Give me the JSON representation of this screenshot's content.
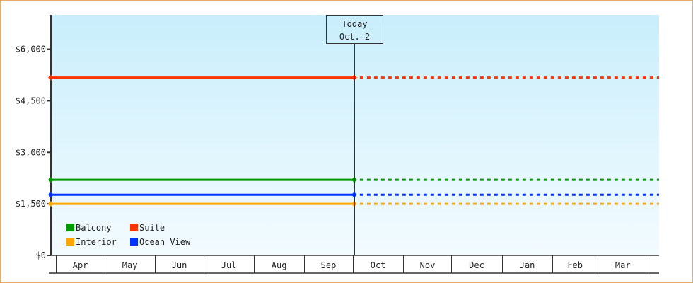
{
  "chart_data": {
    "type": "line",
    "title": "",
    "xlabel": "",
    "ylabel": "",
    "ylim": [
      0,
      7000
    ],
    "yticks": [
      0,
      1500,
      3000,
      4500,
      6000
    ],
    "ytick_labels": [
      "$0",
      "$1,500",
      "$3,000",
      "$4,500",
      "$6,000"
    ],
    "xlim": [
      "2013-03-29",
      "2014-04-08"
    ],
    "months": [
      {
        "label": "Apr",
        "start": "2013-04-01"
      },
      {
        "label": "May",
        "start": "2013-05-01"
      },
      {
        "label": "Jun",
        "start": "2013-06-01"
      },
      {
        "label": "Jul",
        "start": "2013-07-01"
      },
      {
        "label": "Aug",
        "start": "2013-08-01"
      },
      {
        "label": "Sep",
        "start": "2013-09-01"
      },
      {
        "label": "Oct",
        "start": "2013-10-01"
      },
      {
        "label": "Nov",
        "start": "2013-11-01"
      },
      {
        "label": "Dec",
        "start": "2013-12-01"
      },
      {
        "label": "Jan",
        "start": "2014-01-01"
      },
      {
        "label": "Feb",
        "start": "2014-02-01"
      },
      {
        "label": "Mar",
        "start": "2014-03-01"
      },
      {
        "label": "",
        "start": "2014-04-01"
      }
    ],
    "today": {
      "label": "Today",
      "date_label": "Oct. 2",
      "date": "2013-10-02"
    },
    "series": [
      {
        "name": "Balcony",
        "color": "#009900",
        "x": [
          "2013-03-29",
          "2013-10-02"
        ],
        "values": [
          2200,
          2200
        ],
        "projected": 2200
      },
      {
        "name": "Suite",
        "color": "#ff3300",
        "x": [
          "2013-03-29",
          "2013-10-02"
        ],
        "values": [
          5175,
          5175
        ],
        "projected": 5175
      },
      {
        "name": "Interior",
        "color": "#ffa500",
        "x": [
          "2013-03-29",
          "2013-10-02"
        ],
        "values": [
          1500,
          1500
        ],
        "projected": 1500
      },
      {
        "name": "Ocean View",
        "color": "#0033ff",
        "x": [
          "2013-03-29",
          "2013-10-02"
        ],
        "values": [
          1765,
          1765
        ],
        "projected": 1765
      }
    ],
    "legend": "bottom-left",
    "grid": false,
    "background_gradient": [
      "#c9eefc",
      "#f3fbfe"
    ]
  }
}
